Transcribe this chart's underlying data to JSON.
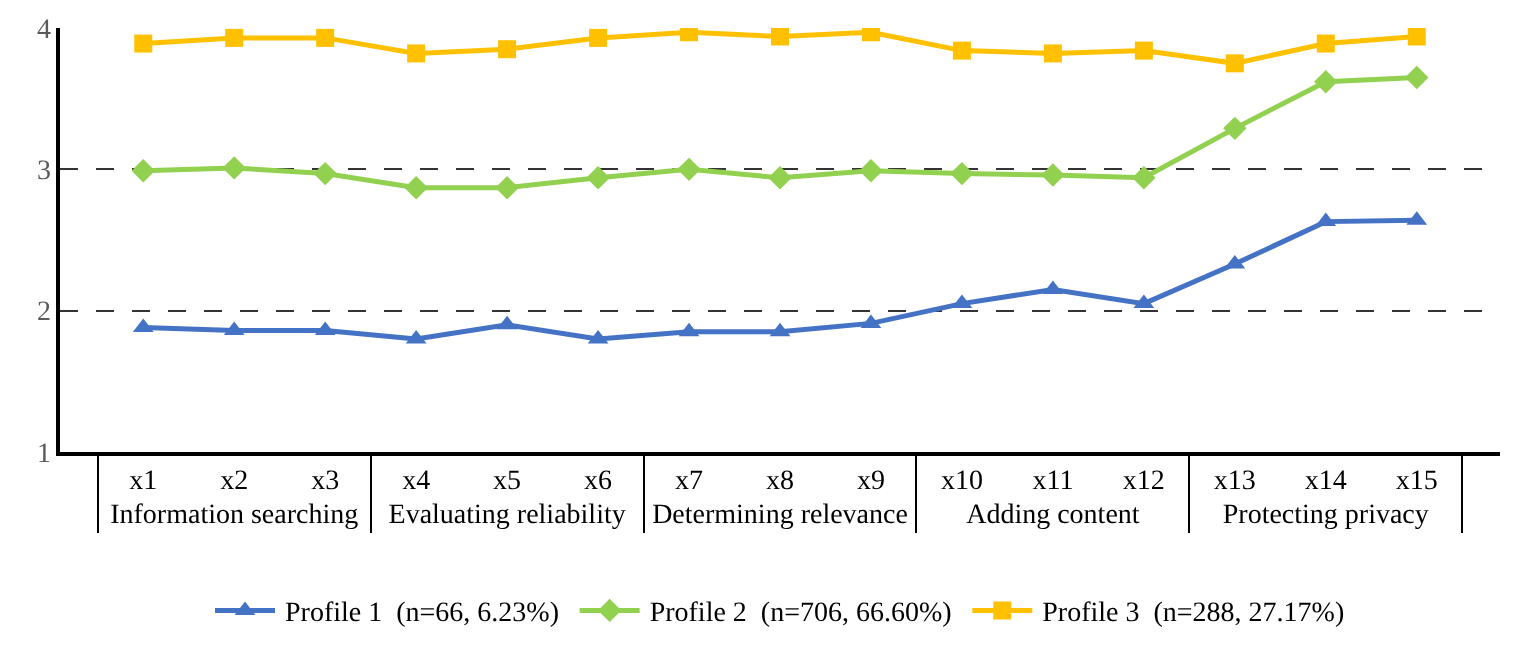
{
  "chart_data": {
    "type": "line",
    "categories": [
      "x1",
      "x2",
      "x3",
      "x4",
      "x5",
      "x6",
      "x7",
      "x8",
      "x9",
      "x10",
      "x11",
      "x12",
      "x13",
      "x14",
      "x15"
    ],
    "annotations": [
      "Information searching",
      "Evaluating reliability",
      "Determining relevance",
      "Adding content",
      "Protecting privacy"
    ],
    "series": [
      {
        "name": "Profile 1  (n=66, 6.23%)",
        "color": "#4472c4",
        "marker": "triangle",
        "values": [
          1.88,
          1.86,
          1.86,
          1.8,
          1.9,
          1.8,
          1.85,
          1.85,
          1.91,
          2.05,
          2.15,
          2.05,
          2.33,
          2.63,
          2.64
        ]
      },
      {
        "name": "Profile 2  (n=706, 66.60%)",
        "color": "#92d050",
        "marker": "diamond",
        "values": [
          2.99,
          3.01,
          2.97,
          2.87,
          2.87,
          2.94,
          3.0,
          2.94,
          2.99,
          2.97,
          2.96,
          2.94,
          3.29,
          3.62,
          3.65
        ]
      },
      {
        "name": "Profile 3  (n=288, 27.17%)",
        "color": "#ffc000",
        "marker": "square",
        "values": [
          3.89,
          3.93,
          3.93,
          3.82,
          3.85,
          3.93,
          3.97,
          3.94,
          3.97,
          3.84,
          3.82,
          3.84,
          3.75,
          3.89,
          3.94
        ]
      }
    ],
    "ylim": [
      1,
      4
    ],
    "yticks": [
      1,
      2,
      3,
      4
    ],
    "grid": "y",
    "legend": "bottom",
    "line_style": "solid"
  }
}
